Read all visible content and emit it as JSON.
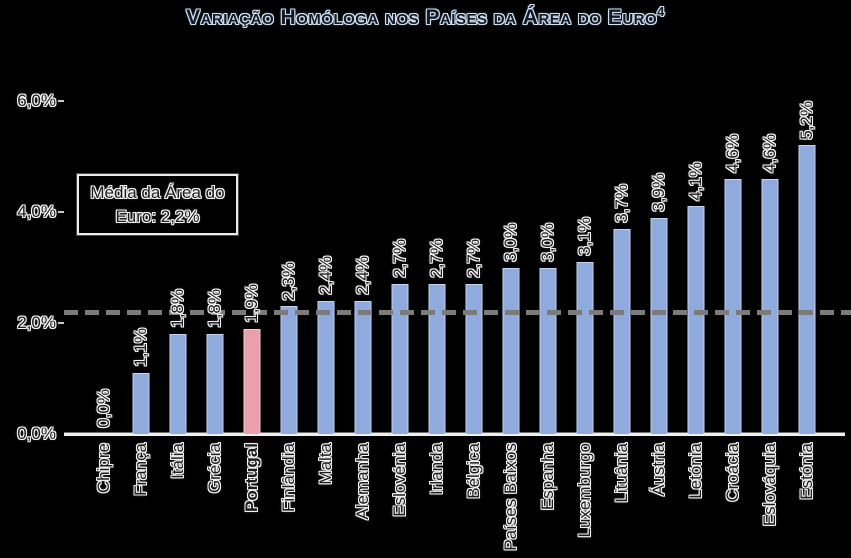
{
  "title": {
    "text": "Variação Homóloga nos Países da Área do Euro",
    "superscript": "4"
  },
  "annotation_box": {
    "line1": "Média da Área do",
    "line2": "Euro: 2,2%"
  },
  "y_axis": {
    "tick_labels": [
      "0,0%",
      "2,0%",
      "4,0%",
      "6,0%"
    ],
    "tick_values": [
      0,
      2,
      4,
      6
    ]
  },
  "colors": {
    "bar_blue": "#8FAADC",
    "bar_pink": "#E9A0AC",
    "dashed_line": "#7B7B7B",
    "axis_line": "#EFEFEF",
    "label_text": "#1C1C1C",
    "label_outline": "#F5F5F5",
    "title_outline": "#CFE0F2",
    "background": "#000000"
  },
  "chart_data": {
    "type": "bar",
    "title": "Variação Homóloga nos Países da Área do Euro⁴",
    "categories": [
      "Chipre",
      "França",
      "Itália",
      "Grécia",
      "Portugal",
      "Finlândia",
      "Malta",
      "Alemanha",
      "Eslovénia",
      "Irlanda",
      "Bélgica",
      "Países Baixos",
      "Espanha",
      "Luxemburgo",
      "Lituânia",
      "Áustria",
      "Letónia",
      "Croácia",
      "Eslováquia",
      "Estónia"
    ],
    "values": [
      0.0,
      1.1,
      1.8,
      1.8,
      1.9,
      2.3,
      2.4,
      2.4,
      2.7,
      2.7,
      2.7,
      3.0,
      3.0,
      3.1,
      3.7,
      3.9,
      4.1,
      4.6,
      4.6,
      5.2
    ],
    "value_labels": [
      "0,0%",
      "1,1%",
      "1,8%",
      "1,8%",
      "1,9%",
      "2,3%",
      "2,4%",
      "2,4%",
      "2,7%",
      "2,7%",
      "2,7%",
      "3,0%",
      "3,0%",
      "3,1%",
      "3,7%",
      "3,9%",
      "4,1%",
      "4,6%",
      "4,6%",
      "5,2%"
    ],
    "highlight_category": "Portugal",
    "average_line": {
      "value": 2.2,
      "label": "Média da Área do Euro: 2,2%"
    },
    "ylim": [
      0,
      6
    ],
    "ytick_labels": [
      "0,0%",
      "2,0%",
      "4,0%",
      "6,0%"
    ],
    "xlabel": "",
    "ylabel": "",
    "legend": false,
    "grid": false,
    "bar_orientation": "vertical",
    "label_rotation_degrees": 270
  }
}
